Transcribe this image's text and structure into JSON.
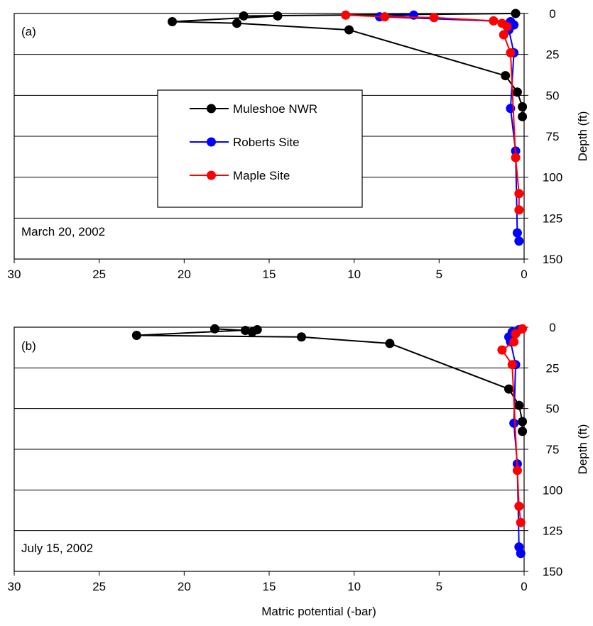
{
  "chart_data": [
    {
      "type": "line",
      "panel_label": "(a)",
      "date_label": "March 20, 2002",
      "xlabel": "",
      "ylabel": "Depth (ft)",
      "xlim": [
        30,
        0
      ],
      "ylim": [
        0,
        150
      ],
      "x_ticks": [
        30,
        25,
        20,
        15,
        10,
        5,
        0
      ],
      "y_ticks": [
        0,
        25,
        50,
        75,
        100,
        125,
        150
      ],
      "y_grid": true,
      "x_reversed": true,
      "y_inverted": true,
      "legend": {
        "placement": "center-left",
        "entries": [
          "Muleshoe NWR",
          "Roberts Site",
          "Maple Site"
        ]
      },
      "series": [
        {
          "name": "Muleshoe NWR",
          "color": "#000000",
          "points": [
            [
              0.5,
              0
            ],
            [
              16.5,
              1.5
            ],
            [
              14.5,
              1.5
            ],
            [
              20.7,
              5
            ],
            [
              16.9,
              6
            ],
            [
              10.3,
              10
            ],
            [
              1.1,
              38
            ],
            [
              0.4,
              48
            ],
            [
              0.1,
              57
            ],
            [
              0.1,
              63
            ]
          ]
        },
        {
          "name": "Roberts Site",
          "color": "#0000ff",
          "points": [
            [
              6.5,
              1
            ],
            [
              8.5,
              2
            ],
            [
              0.8,
              5
            ],
            [
              0.6,
              7
            ],
            [
              0.9,
              10
            ],
            [
              0.6,
              24
            ],
            [
              0.8,
              58
            ],
            [
              0.5,
              84
            ],
            [
              0.4,
              134
            ],
            [
              0.3,
              139
            ]
          ]
        },
        {
          "name": "Maple Site",
          "color": "#ff0000",
          "points": [
            [
              10.5,
              1
            ],
            [
              8.2,
              2
            ],
            [
              5.3,
              2.5
            ],
            [
              1.8,
              4.5
            ],
            [
              1.3,
              6
            ],
            [
              1,
              8
            ],
            [
              1.2,
              13
            ],
            [
              0.8,
              24
            ],
            [
              0.5,
              88
            ],
            [
              0.3,
              110
            ],
            [
              0.3,
              120
            ]
          ]
        }
      ]
    },
    {
      "type": "line",
      "panel_label": "(b)",
      "date_label": "July 15, 2002",
      "xlabel": "Matric potential (-bar)",
      "ylabel": "Depth (ft)",
      "xlim": [
        30,
        0
      ],
      "ylim": [
        0,
        150
      ],
      "x_ticks": [
        30,
        25,
        20,
        15,
        10,
        5,
        0
      ],
      "y_ticks": [
        0,
        25,
        50,
        75,
        100,
        125,
        150
      ],
      "y_grid": true,
      "x_reversed": true,
      "y_inverted": true,
      "series": [
        {
          "name": "Muleshoe NWR",
          "color": "#000000",
          "points": [
            [
              18.2,
              1
            ],
            [
              16.4,
              2
            ],
            [
              16,
              3
            ],
            [
              15.7,
              1.5
            ],
            [
              22.8,
              5
            ],
            [
              13.1,
              6
            ],
            [
              7.9,
              10
            ],
            [
              0.9,
              38
            ],
            [
              0.3,
              48
            ],
            [
              0.1,
              58
            ],
            [
              0.1,
              64
            ]
          ]
        },
        {
          "name": "Roberts Site",
          "color": "#0000ff",
          "points": [
            [
              0.3,
              1.5
            ],
            [
              0.7,
              3
            ],
            [
              0.9,
              6
            ],
            [
              0.8,
              9
            ],
            [
              0.5,
              23
            ],
            [
              0.6,
              59
            ],
            [
              0.4,
              84
            ],
            [
              0.3,
              135
            ],
            [
              0.2,
              139
            ]
          ]
        },
        {
          "name": "Maple Site",
          "color": "#ff0000",
          "points": [
            [
              0.1,
              1
            ],
            [
              0.5,
              4
            ],
            [
              0.6,
              9
            ],
            [
              1.3,
              14
            ],
            [
              0.7,
              23
            ],
            [
              0.4,
              88
            ],
            [
              0.3,
              110
            ],
            [
              0.2,
              120
            ]
          ]
        }
      ]
    }
  ]
}
